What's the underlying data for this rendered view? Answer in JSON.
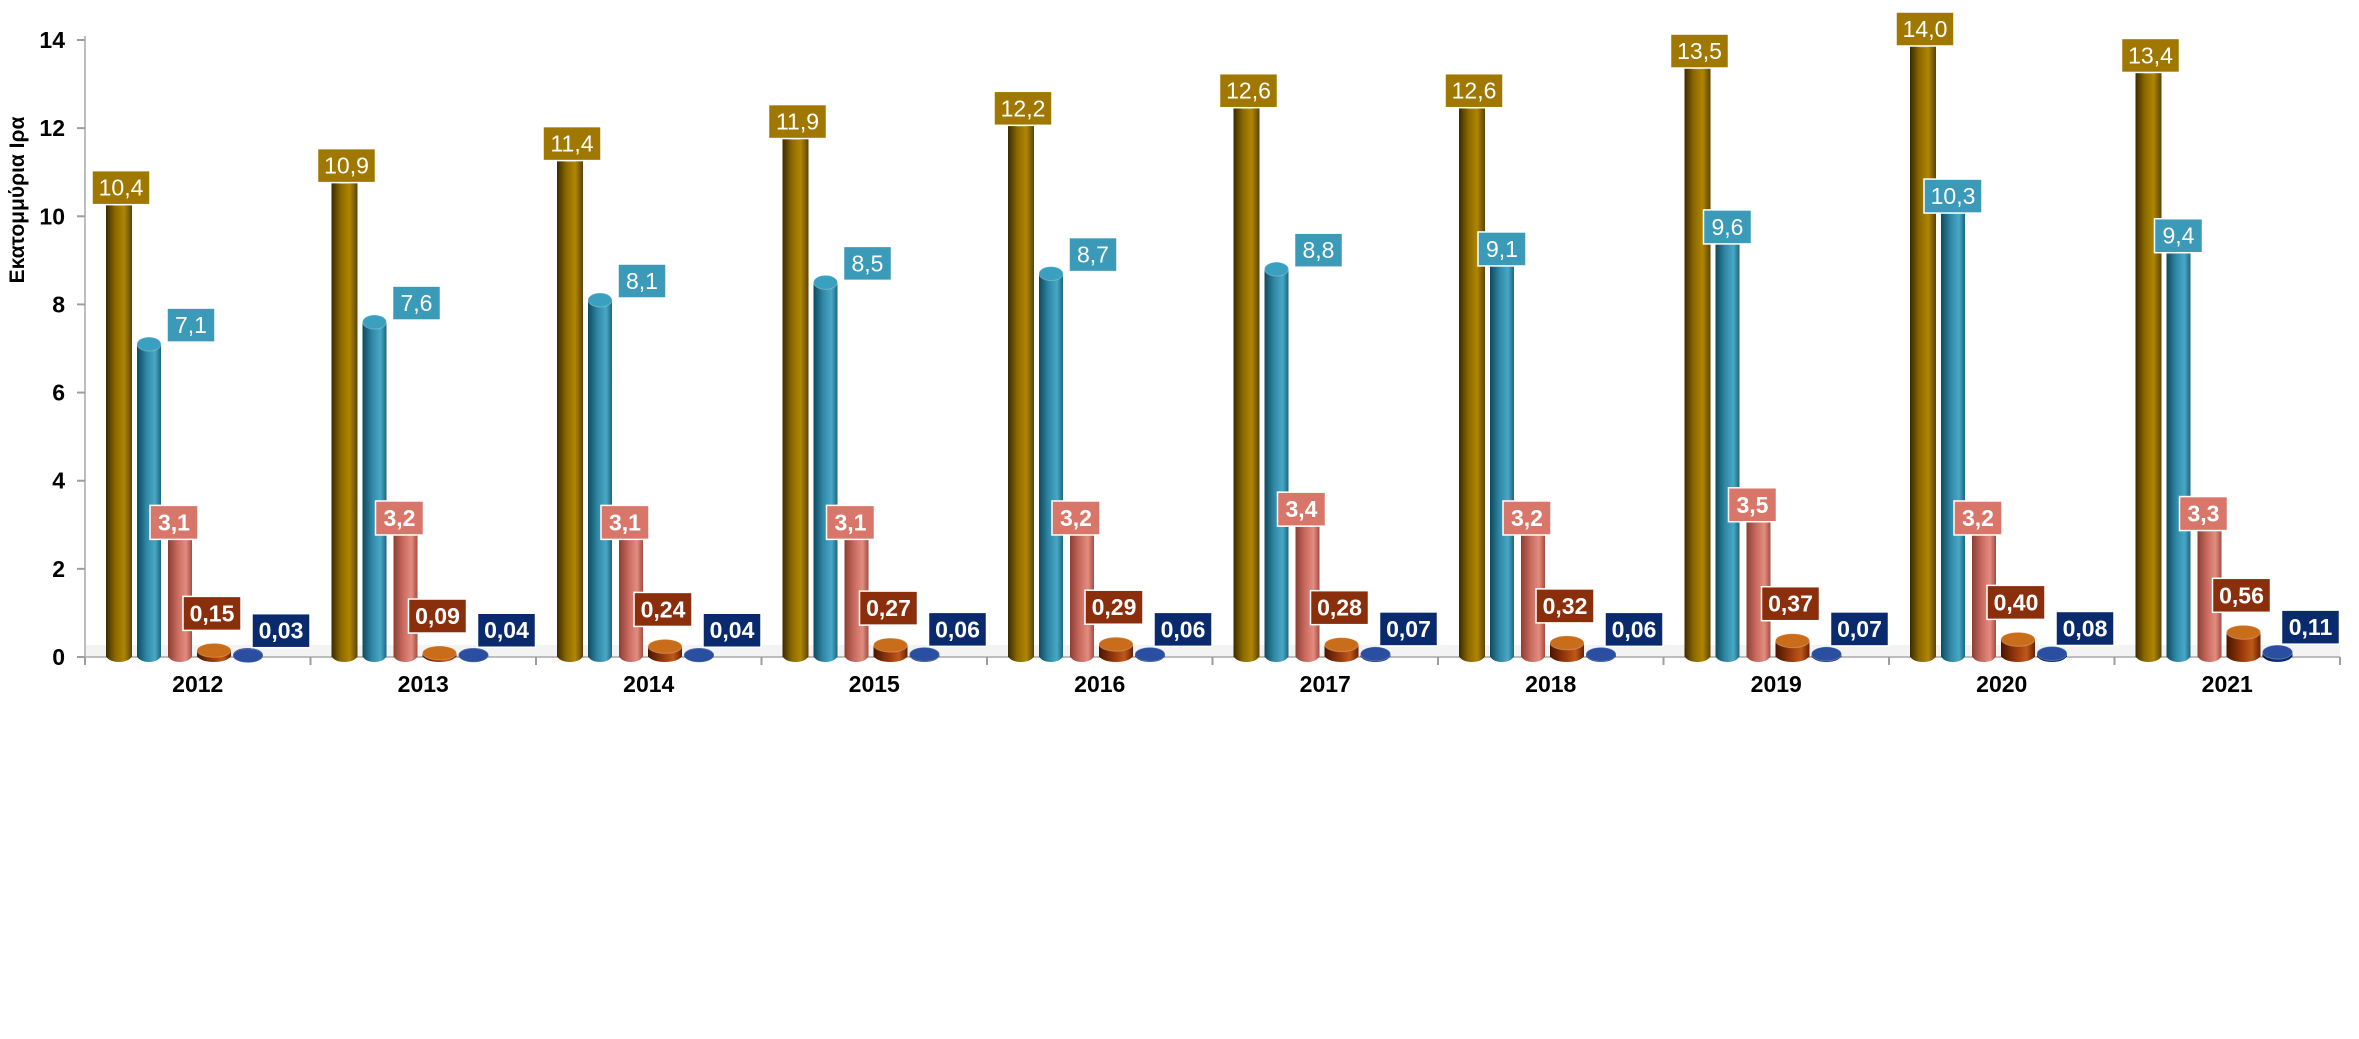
{
  "chart_data": {
    "type": "bar",
    "title": "",
    "xlabel": "",
    "ylabel": "Εκατομμύρια  Ιρα",
    "ylim": [
      0,
      14
    ],
    "yticks": [
      "0",
      "2",
      "4",
      "6",
      "8",
      "10",
      "12",
      "14"
    ],
    "grid": false,
    "legend": "none",
    "categories": [
      "2012",
      "2013",
      "2014",
      "2015",
      "2016",
      "2017",
      "2018",
      "2019",
      "2020",
      "2021"
    ],
    "series": [
      {
        "color": "#a07800",
        "values": [
          10.4,
          10.9,
          11.4,
          11.9,
          12.2,
          12.6,
          12.6,
          13.5,
          14.0,
          13.4
        ],
        "labels": [
          "10,4",
          "10,9",
          "11,4",
          "11,9",
          "12,2",
          "12,6",
          "12,6",
          "13,5",
          "14,0",
          "13,4"
        ]
      },
      {
        "color": "#3a9ab8",
        "values": [
          7.1,
          7.6,
          8.1,
          8.5,
          8.7,
          8.8,
          9.1,
          9.6,
          10.3,
          9.4
        ],
        "labels": [
          "7,1",
          "7,6",
          "8,1",
          "8,5",
          "8,7",
          "8,8",
          "9,1",
          "9,6",
          "10,3",
          "9,4"
        ]
      },
      {
        "color": "#d8766a",
        "values": [
          3.1,
          3.2,
          3.1,
          3.1,
          3.2,
          3.4,
          3.2,
          3.5,
          3.2,
          3.3
        ],
        "labels": [
          "3,1",
          "3,2",
          "3,1",
          "3,1",
          "3,2",
          "3,4",
          "3,2",
          "3,5",
          "3,2",
          "3,3"
        ]
      },
      {
        "color": "#8b2e0c",
        "values": [
          0.15,
          0.09,
          0.24,
          0.27,
          0.29,
          0.28,
          0.32,
          0.37,
          0.4,
          0.56
        ],
        "labels": [
          "0,15",
          "0,09",
          "0,24",
          "0,27",
          "0,29",
          "0,28",
          "0,32",
          "0,37",
          "0,40",
          "0,56"
        ]
      },
      {
        "color": "#0a2a6e",
        "values": [
          0.03,
          0.04,
          0.04,
          0.06,
          0.06,
          0.07,
          0.06,
          0.07,
          0.08,
          0.11
        ],
        "labels": [
          "0,03",
          "0,04",
          "0,04",
          "0,06",
          "0,06",
          "0,07",
          "0,06",
          "0,07",
          "0,08",
          "0,11"
        ]
      }
    ]
  }
}
